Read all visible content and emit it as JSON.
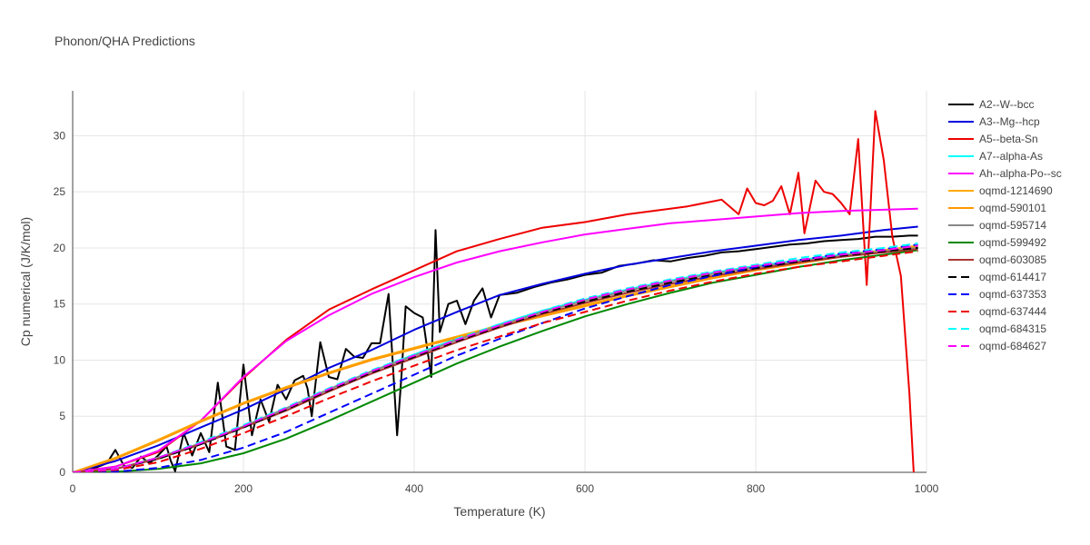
{
  "chart_data": {
    "type": "line",
    "title": "Phonon/QHA Predictions",
    "xlabel": "Temperature (K)",
    "ylabel": "Cp numerical (J/K/mol)",
    "xlim": [
      0,
      1000
    ],
    "ylim": [
      0,
      34
    ],
    "xticks": [
      0,
      200,
      400,
      600,
      800,
      1000
    ],
    "yticks": [
      0,
      5,
      10,
      15,
      20,
      25,
      30
    ],
    "grid": true,
    "legend_position": "top-right",
    "series": [
      {
        "name": "A2--W--bcc",
        "color": "#000000",
        "dash": "solid",
        "x": [
          0,
          20,
          40,
          50,
          60,
          70,
          80,
          90,
          100,
          110,
          115,
          120,
          130,
          140,
          150,
          160,
          170,
          180,
          190,
          200,
          210,
          220,
          230,
          240,
          250,
          260,
          270,
          275,
          280,
          290,
          300,
          310,
          320,
          330,
          340,
          350,
          360,
          370,
          380,
          385,
          390,
          400,
          410,
          420,
          425,
          430,
          440,
          450,
          460,
          470,
          480,
          490,
          500,
          510,
          520,
          540,
          560,
          580,
          600,
          620,
          640,
          660,
          680,
          700,
          720,
          740,
          760,
          780,
          800,
          820,
          840,
          860,
          880,
          900,
          920,
          940,
          960,
          980,
          990
        ],
        "y": [
          0,
          0.2,
          0.8,
          2.0,
          0.6,
          0.4,
          1.4,
          0.8,
          1.5,
          2.3,
          1.0,
          0.1,
          3.5,
          1.5,
          3.5,
          1.8,
          8.0,
          2.3,
          2.0,
          9.6,
          3.3,
          6.5,
          4.5,
          7.8,
          6.5,
          8.2,
          8.6,
          7.5,
          5.0,
          11.6,
          8.5,
          8.3,
          11.0,
          10.3,
          10.2,
          11.5,
          11.5,
          15.9,
          3.3,
          8.5,
          14.8,
          14.2,
          13.8,
          8.5,
          21.6,
          12.5,
          15.0,
          15.3,
          13.2,
          15.3,
          16.4,
          13.8,
          15.8,
          15.9,
          16.0,
          16.5,
          16.9,
          17.2,
          17.6,
          17.8,
          18.4,
          18.6,
          18.9,
          18.8,
          19.1,
          19.3,
          19.6,
          19.7,
          19.9,
          20.1,
          20.3,
          20.4,
          20.6,
          20.7,
          20.8,
          21.0,
          21.0,
          21.1,
          21.1
        ]
      },
      {
        "name": "A3--Mg--hcp",
        "color": "#0000dd",
        "dash": "solid",
        "x": [
          0,
          50,
          100,
          150,
          200,
          250,
          300,
          350,
          400,
          450,
          500,
          550,
          600,
          650,
          700,
          750,
          800,
          850,
          900,
          950,
          990
        ],
        "y": [
          0,
          1.0,
          2.4,
          4.0,
          5.6,
          7.4,
          9.3,
          10.9,
          12.7,
          14.3,
          15.8,
          16.8,
          17.7,
          18.5,
          19.1,
          19.7,
          20.2,
          20.7,
          21.1,
          21.6,
          21.9
        ]
      },
      {
        "name": "A5--beta-Sn",
        "color": "#ee0000",
        "dash": "solid",
        "x": [
          0,
          50,
          100,
          150,
          200,
          250,
          300,
          350,
          400,
          450,
          500,
          550,
          600,
          650,
          700,
          720,
          740,
          760,
          780,
          790,
          800,
          810,
          820,
          830,
          840,
          850,
          857,
          870,
          880,
          890,
          900,
          910,
          920,
          930,
          940,
          950,
          960,
          970,
          980,
          985
        ],
        "y": [
          0,
          0.5,
          1.8,
          4.6,
          8.4,
          11.8,
          14.5,
          16.3,
          18.0,
          19.7,
          20.8,
          21.8,
          22.3,
          23.0,
          23.5,
          23.7,
          24.0,
          24.3,
          23.0,
          25.3,
          24.0,
          23.8,
          24.2,
          25.5,
          23.0,
          26.7,
          21.3,
          26.0,
          25.0,
          24.8,
          24.0,
          23.0,
          29.7,
          16.7,
          32.2,
          27.8,
          21.0,
          17.5,
          7.0,
          0
        ]
      },
      {
        "name": "A7--alpha-As",
        "color": "#00ffff",
        "dash": "solid",
        "x": [
          0,
          50,
          100,
          150,
          200,
          250,
          300,
          350,
          400,
          450,
          500,
          550,
          600,
          650,
          700,
          750,
          800,
          850,
          900,
          950,
          990
        ],
        "y": [
          0,
          0.3,
          1.3,
          2.6,
          4.1,
          5.7,
          7.4,
          9.0,
          10.5,
          11.9,
          13.2,
          14.4,
          15.4,
          16.3,
          17.1,
          17.8,
          18.4,
          18.9,
          19.4,
          19.8,
          20.1
        ]
      },
      {
        "name": "Ah--alpha-Po--sc",
        "color": "#ff00ff",
        "dash": "solid",
        "x": [
          0,
          50,
          100,
          150,
          200,
          250,
          300,
          350,
          400,
          450,
          500,
          550,
          600,
          650,
          700,
          750,
          800,
          850,
          900,
          950,
          990
        ],
        "y": [
          0,
          0.5,
          1.9,
          4.6,
          8.5,
          11.7,
          14.0,
          15.9,
          17.4,
          18.7,
          19.7,
          20.5,
          21.2,
          21.7,
          22.2,
          22.5,
          22.8,
          23.1,
          23.3,
          23.4,
          23.5
        ]
      },
      {
        "name": "oqmd-1214690",
        "color": "#ffaa00",
        "dash": "solid",
        "x": [
          0,
          50,
          100,
          150,
          200,
          250,
          300,
          350,
          400,
          450,
          500,
          550,
          600,
          650,
          700,
          750,
          800,
          850,
          900,
          950,
          990
        ],
        "y": [
          0,
          1.3,
          2.9,
          4.6,
          6.2,
          7.6,
          8.9,
          10.1,
          11.1,
          12.1,
          13.1,
          14.0,
          14.9,
          15.8,
          16.6,
          17.4,
          18.1,
          18.7,
          19.3,
          19.8,
          20.2
        ]
      },
      {
        "name": "oqmd-590101",
        "color": "#ff9900",
        "dash": "solid",
        "x": [
          0,
          50,
          100,
          150,
          200,
          250,
          300,
          350,
          400,
          450,
          500,
          550,
          600,
          650,
          700,
          750,
          800,
          850,
          900,
          950,
          990
        ],
        "y": [
          0,
          1.2,
          2.8,
          4.5,
          6.1,
          7.5,
          8.8,
          10.0,
          11.0,
          12.0,
          13.0,
          13.9,
          14.8,
          15.7,
          16.5,
          17.3,
          18.0,
          18.6,
          19.2,
          19.7,
          20.1
        ]
      },
      {
        "name": "oqmd-595714",
        "color": "#888888",
        "dash": "solid",
        "x": [
          0,
          50,
          100,
          150,
          200,
          250,
          300,
          350,
          400,
          450,
          500,
          550,
          600,
          650,
          700,
          750,
          800,
          850,
          900,
          950,
          990
        ],
        "y": [
          0,
          0.3,
          1.3,
          2.6,
          4.1,
          5.7,
          7.4,
          9.0,
          10.4,
          11.8,
          13.1,
          14.3,
          15.3,
          16.2,
          17.0,
          17.7,
          18.3,
          18.8,
          19.3,
          19.7,
          20.0
        ]
      },
      {
        "name": "oqmd-599492",
        "color": "#008800",
        "dash": "solid",
        "x": [
          0,
          50,
          100,
          150,
          200,
          250,
          300,
          350,
          400,
          450,
          500,
          550,
          600,
          650,
          700,
          750,
          800,
          850,
          900,
          950,
          990
        ],
        "y": [
          0,
          0.05,
          0.3,
          0.8,
          1.7,
          3.0,
          4.6,
          6.3,
          8.0,
          9.7,
          11.2,
          12.6,
          13.9,
          15.0,
          16.0,
          16.9,
          17.6,
          18.3,
          18.9,
          19.4,
          19.8
        ]
      },
      {
        "name": "oqmd-603085",
        "color": "#aa3333",
        "dash": "solid",
        "x": [
          0,
          50,
          100,
          150,
          200,
          250,
          300,
          350,
          400,
          450,
          500,
          550,
          600,
          650,
          700,
          750,
          800,
          850,
          900,
          950,
          990
        ],
        "y": [
          0,
          0.3,
          1.2,
          2.5,
          4.0,
          5.5,
          7.2,
          8.8,
          10.2,
          11.6,
          12.9,
          14.1,
          15.1,
          16.0,
          16.8,
          17.5,
          18.1,
          18.7,
          19.2,
          19.6,
          19.9
        ]
      },
      {
        "name": "oqmd-614417",
        "color": "#000000",
        "dash": "dash",
        "x": [
          0,
          50,
          100,
          150,
          200,
          250,
          300,
          350,
          400,
          450,
          500,
          550,
          600,
          650,
          700,
          750,
          800,
          850,
          900,
          950,
          990
        ],
        "y": [
          0,
          0.3,
          1.2,
          2.5,
          4.0,
          5.6,
          7.3,
          8.9,
          10.3,
          11.7,
          13.0,
          14.2,
          15.2,
          16.1,
          16.9,
          17.6,
          18.2,
          18.8,
          19.3,
          19.7,
          20.0
        ]
      },
      {
        "name": "oqmd-637353",
        "color": "#0000ff",
        "dash": "dash",
        "x": [
          0,
          50,
          100,
          150,
          200,
          250,
          300,
          350,
          400,
          450,
          500,
          550,
          600,
          650,
          700,
          750,
          800,
          850,
          900,
          950,
          990
        ],
        "y": [
          0,
          0.05,
          0.4,
          1.1,
          2.2,
          3.6,
          5.3,
          7.0,
          8.7,
          10.4,
          11.9,
          13.3,
          14.6,
          15.7,
          16.7,
          17.5,
          18.3,
          18.9,
          19.5,
          19.9,
          20.3
        ]
      },
      {
        "name": "oqmd-637444",
        "color": "#ee0000",
        "dash": "dash",
        "x": [
          0,
          50,
          100,
          150,
          200,
          250,
          300,
          350,
          400,
          450,
          500,
          550,
          600,
          650,
          700,
          750,
          800,
          850,
          900,
          950,
          990
        ],
        "y": [
          0,
          0.2,
          0.9,
          2.1,
          3.5,
          5.0,
          6.6,
          8.1,
          9.5,
          10.9,
          12.1,
          13.3,
          14.3,
          15.3,
          16.2,
          17.0,
          17.7,
          18.3,
          18.8,
          19.3,
          19.7
        ]
      },
      {
        "name": "oqmd-684315",
        "color": "#00ffff",
        "dash": "dash",
        "x": [
          0,
          50,
          100,
          150,
          200,
          250,
          300,
          350,
          400,
          450,
          500,
          550,
          600,
          650,
          700,
          750,
          800,
          850,
          900,
          950,
          990
        ],
        "y": [
          0,
          0.3,
          1.3,
          2.7,
          4.2,
          5.8,
          7.5,
          9.1,
          10.5,
          11.9,
          13.2,
          14.4,
          15.5,
          16.4,
          17.2,
          17.9,
          18.5,
          19.1,
          19.6,
          20.0,
          20.4
        ]
      },
      {
        "name": "oqmd-684627",
        "color": "#ff00ff",
        "dash": "dash",
        "x": [
          0,
          50,
          100,
          150,
          200,
          250,
          300,
          350,
          400,
          450,
          500,
          550,
          600,
          650,
          700,
          750,
          800,
          850,
          900,
          950,
          990
        ],
        "y": [
          0,
          0.3,
          1.3,
          2.6,
          4.1,
          5.7,
          7.4,
          9.0,
          10.4,
          11.8,
          13.1,
          14.3,
          15.4,
          16.3,
          17.1,
          17.8,
          18.4,
          18.9,
          19.4,
          19.8,
          20.2
        ]
      }
    ]
  }
}
